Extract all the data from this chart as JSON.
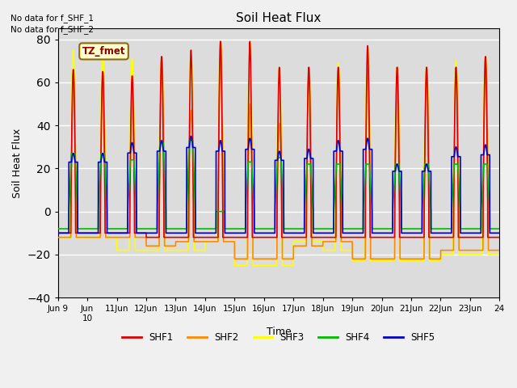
{
  "title": "Soil Heat Flux",
  "xlabel": "Time",
  "ylabel": "Soil Heat Flux",
  "ylim": [
    -40,
    85
  ],
  "yticks": [
    -40,
    -20,
    0,
    20,
    40,
    60,
    80
  ],
  "bg_color": "#dcdcdc",
  "fig_bg_color": "#f0f0f0",
  "annotations": [
    "No data for f_SHF_1",
    "No data for f_SHF_2"
  ],
  "legend_label": "TZ_fmet",
  "series_colors": {
    "SHF1": "#dd0000",
    "SHF2": "#ff8800",
    "SHF3": "#ffff00",
    "SHF4": "#00bb00",
    "SHF5": "#0000cc"
  },
  "series_lw": 1.2,
  "grid_color": "#ffffff",
  "n_days": 15,
  "start_day": 9,
  "day_peaks_shf1": [
    66,
    65,
    63,
    72,
    75,
    79,
    79,
    67,
    67,
    67,
    77,
    67,
    67,
    67,
    72
  ],
  "day_peaks_shf2": [
    65,
    65,
    63,
    72,
    47,
    79,
    50,
    41,
    67,
    67,
    67,
    67,
    67,
    67,
    72
  ],
  "day_peaks_shf3": [
    75,
    74,
    71,
    70,
    75,
    79,
    79,
    67,
    55,
    69,
    76,
    67,
    67,
    70,
    72
  ],
  "day_peaks_shf4": [
    27,
    27,
    24,
    32,
    33,
    0,
    23,
    25,
    22,
    22,
    22,
    22,
    22,
    22,
    22
  ],
  "day_peaks_shf5": [
    27,
    27,
    32,
    33,
    35,
    33,
    34,
    28,
    29,
    33,
    34,
    22,
    22,
    30,
    31
  ],
  "day_troughs_shf1": [
    -10,
    -10,
    -10,
    -12,
    -12,
    -12,
    -12,
    -12,
    -12,
    -12,
    -12,
    -12,
    -12,
    -12,
    -12
  ],
  "day_troughs_shf2": [
    -12,
    -12,
    -12,
    -16,
    -14,
    -14,
    -22,
    -22,
    -16,
    -14,
    -22,
    -22,
    -22,
    -18,
    -18
  ],
  "day_troughs_shf3": [
    -12,
    -12,
    -18,
    -18,
    -18,
    -14,
    -25,
    -25,
    -14,
    -18,
    -23,
    -23,
    -23,
    -20,
    -20
  ],
  "day_troughs_shf4": [
    -8,
    -8,
    -8,
    -8,
    -8,
    -8,
    -8,
    -8,
    -8,
    -8,
    -8,
    -8,
    -8,
    -8,
    -8
  ],
  "day_troughs_shf5": [
    -10,
    -10,
    -10,
    -10,
    -10,
    -10,
    -10,
    -10,
    -10,
    -10,
    -10,
    -10,
    -10,
    -10,
    -10
  ]
}
